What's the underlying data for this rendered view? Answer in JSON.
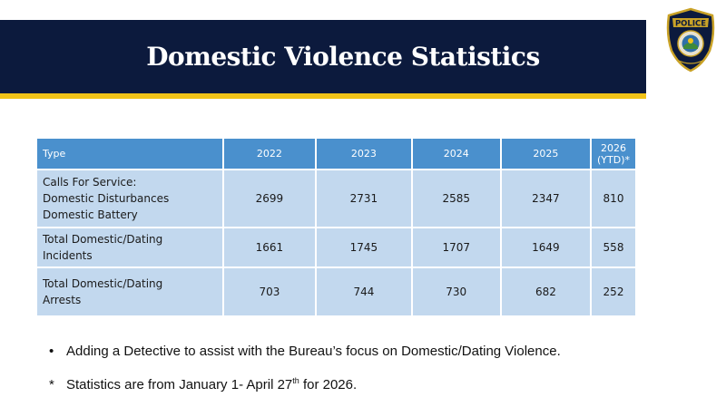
{
  "slide": {
    "title": "Domestic Violence Statistics"
  },
  "badge": {
    "text": "POLICE"
  },
  "table": {
    "headers": [
      "Type",
      "2022",
      "2023",
      "2024",
      "2025",
      "2026 (YTD)*"
    ],
    "rows": [
      {
        "label_lines": [
          "Calls For Service:",
          "Domestic Disturbances",
          "Domestic Battery"
        ],
        "values": [
          "2699",
          "2731",
          "2585",
          "2347",
          "810"
        ]
      },
      {
        "label_lines": [
          "Total Domestic/Dating",
          "Incidents"
        ],
        "values": [
          "1661",
          "1745",
          "1707",
          "1649",
          "558"
        ]
      },
      {
        "label_lines": [
          "Total Domestic/Dating",
          "Arrests"
        ],
        "values": [
          "703",
          "744",
          "730",
          "682",
          "252"
        ]
      }
    ]
  },
  "notes": {
    "bullet_marker": "•",
    "bullet_text": "Adding a Detective to assist with the Bureau’s focus on Domestic/Dating Violence.",
    "footnote_marker": "*",
    "footnote_text_before": "Statistics are from January 1- April 27",
    "footnote_sup": "th",
    "footnote_text_after": " for 2026."
  },
  "colors": {
    "banner": "#0c1a3d",
    "banner_accent": "#f2c318",
    "table_header": "#4a90cd",
    "table_cell": "#c2d8ee"
  }
}
